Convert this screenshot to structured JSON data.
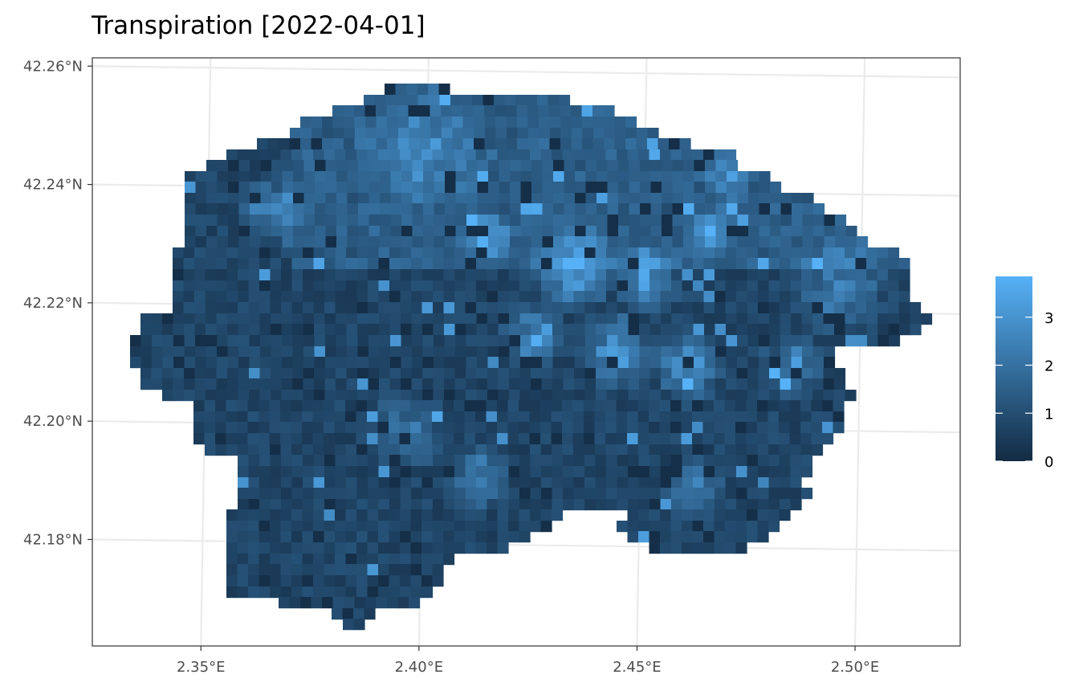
{
  "title": "Transpiration [2022-04-01]",
  "chart_data": {
    "type": "heatmap",
    "title": "Transpiration [2022-04-01]",
    "xlabel": "",
    "ylabel": "",
    "x_ticks": [
      {
        "value": 2.35,
        "label": "2.35°E"
      },
      {
        "value": 2.4,
        "label": "2.40°E"
      },
      {
        "value": 2.45,
        "label": "2.45°E"
      },
      {
        "value": 2.5,
        "label": "2.50°E"
      }
    ],
    "y_ticks": [
      {
        "value": 42.26,
        "label": "42.26°N"
      },
      {
        "value": 42.24,
        "label": "42.24°N"
      },
      {
        "value": 42.22,
        "label": "42.22°N"
      },
      {
        "value": 42.2,
        "label": "42.20°N"
      },
      {
        "value": 42.18,
        "label": "42.18°N"
      }
    ],
    "xlim": [
      2.324,
      2.523
    ],
    "ylim": [
      42.162,
      42.2614
    ],
    "grid": true,
    "legend": {
      "position": "right",
      "type": "colorbar",
      "range": [
        0,
        3.85
      ],
      "ticks": [
        0,
        1,
        2,
        3
      ],
      "low_color": "#132B43",
      "high_color": "#56B1F7"
    },
    "raster": {
      "cell_lon": 0.0025,
      "cell_lat": 0.00185,
      "value_range": [
        0,
        3.85
      ],
      "description_of_pattern": "Irregular catchment-shaped raster; low values (0-1) dominate west and south; higher values (2.5-3.8) cluster in centre and east around 2.42-2.48°E, 42.20-42.23°N."
    },
    "colors": {
      "low": "#132B43",
      "high": "#56B1F7",
      "grid": "#ebebeb",
      "panel_border": "#333333"
    }
  }
}
